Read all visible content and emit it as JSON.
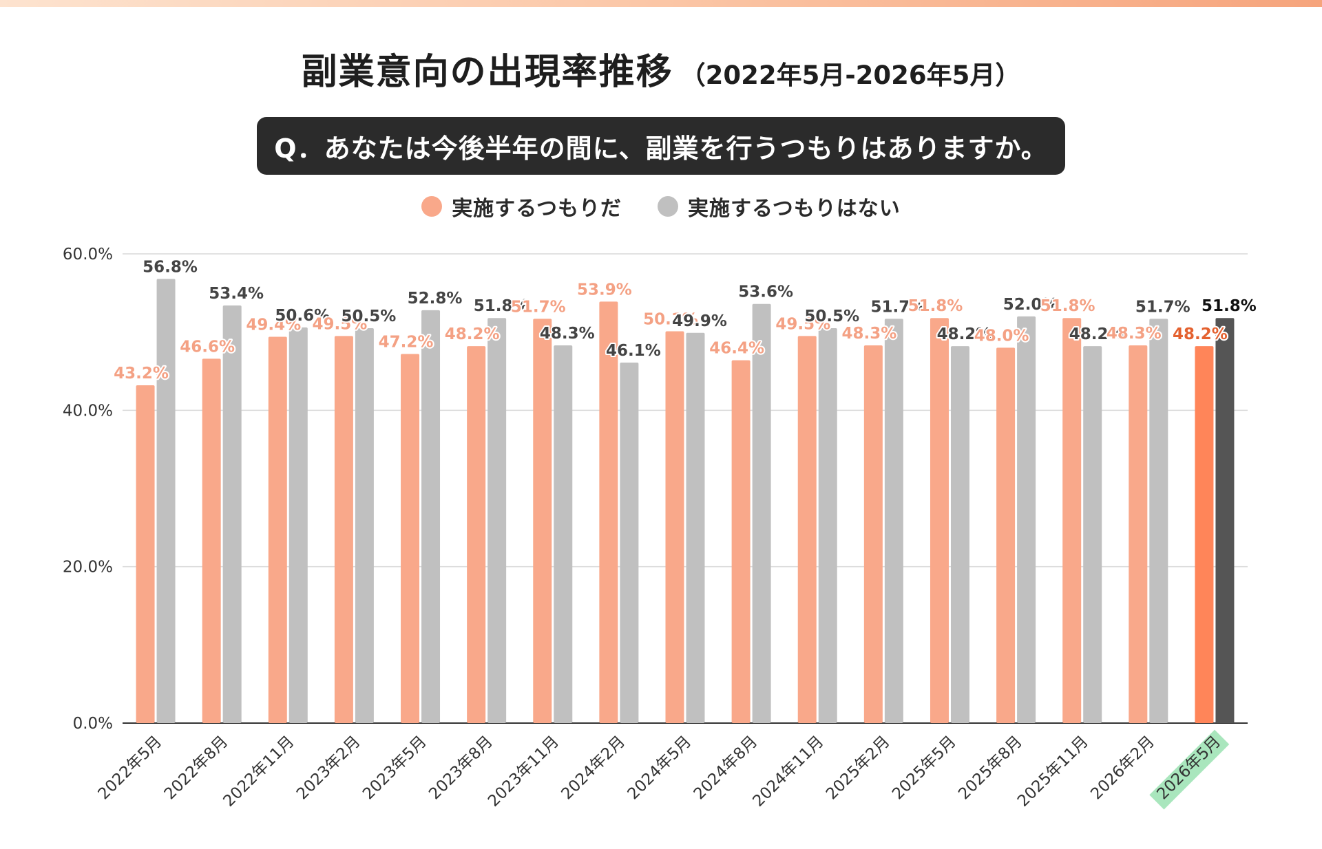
{
  "title": "副業意向の出現率推移",
  "subtitle": "（2022年5月-2026年5月）",
  "question": "Q．あなたは今後半年の間に、副業を行うつもりはありますか。",
  "colors": {
    "intend": "#f9a88a",
    "intend_label": "#f4a184",
    "not_intend": "#c0c0c0",
    "not_intend_label": "#444444",
    "highlight_intend": "#ff8559",
    "highlight_intend_label": "#e4612f",
    "highlight_not_intend": "#555555",
    "highlight_not_intend_label": "#111111",
    "highlight_tick_bg": "#a9e6bd",
    "grid": "#d9d9d9",
    "axis": "#333333"
  },
  "chart_data": {
    "type": "bar",
    "categories": [
      "2022年5月",
      "2022年8月",
      "2022年11月",
      "2023年2月",
      "2023年5月",
      "2023年8月",
      "2023年11月",
      "2024年2月",
      "2024年5月",
      "2024年8月",
      "2024年11月",
      "2025年2月",
      "2025年5月",
      "2025年8月",
      "2025年11月",
      "2026年2月",
      "2026年5月"
    ],
    "series": [
      {
        "name": "実施するつもりだ",
        "values": [
          43.2,
          46.6,
          49.4,
          49.5,
          47.2,
          48.2,
          51.7,
          53.9,
          50.1,
          46.4,
          49.5,
          48.3,
          51.8,
          48.0,
          51.8,
          48.3,
          48.2
        ]
      },
      {
        "name": "実施するつもりはない",
        "values": [
          56.8,
          53.4,
          50.6,
          50.5,
          52.8,
          51.8,
          48.3,
          46.1,
          49.9,
          53.6,
          50.5,
          51.7,
          48.2,
          52.0,
          48.2,
          51.7,
          51.8
        ]
      }
    ],
    "yticks": [
      "0.0%",
      "20.0%",
      "40.0%",
      "60.0%"
    ],
    "ylim": [
      0,
      60
    ],
    "grid": true,
    "legend_position": "top-center",
    "highlight_category": "2026年5月",
    "xlabel": "",
    "ylabel": ""
  }
}
